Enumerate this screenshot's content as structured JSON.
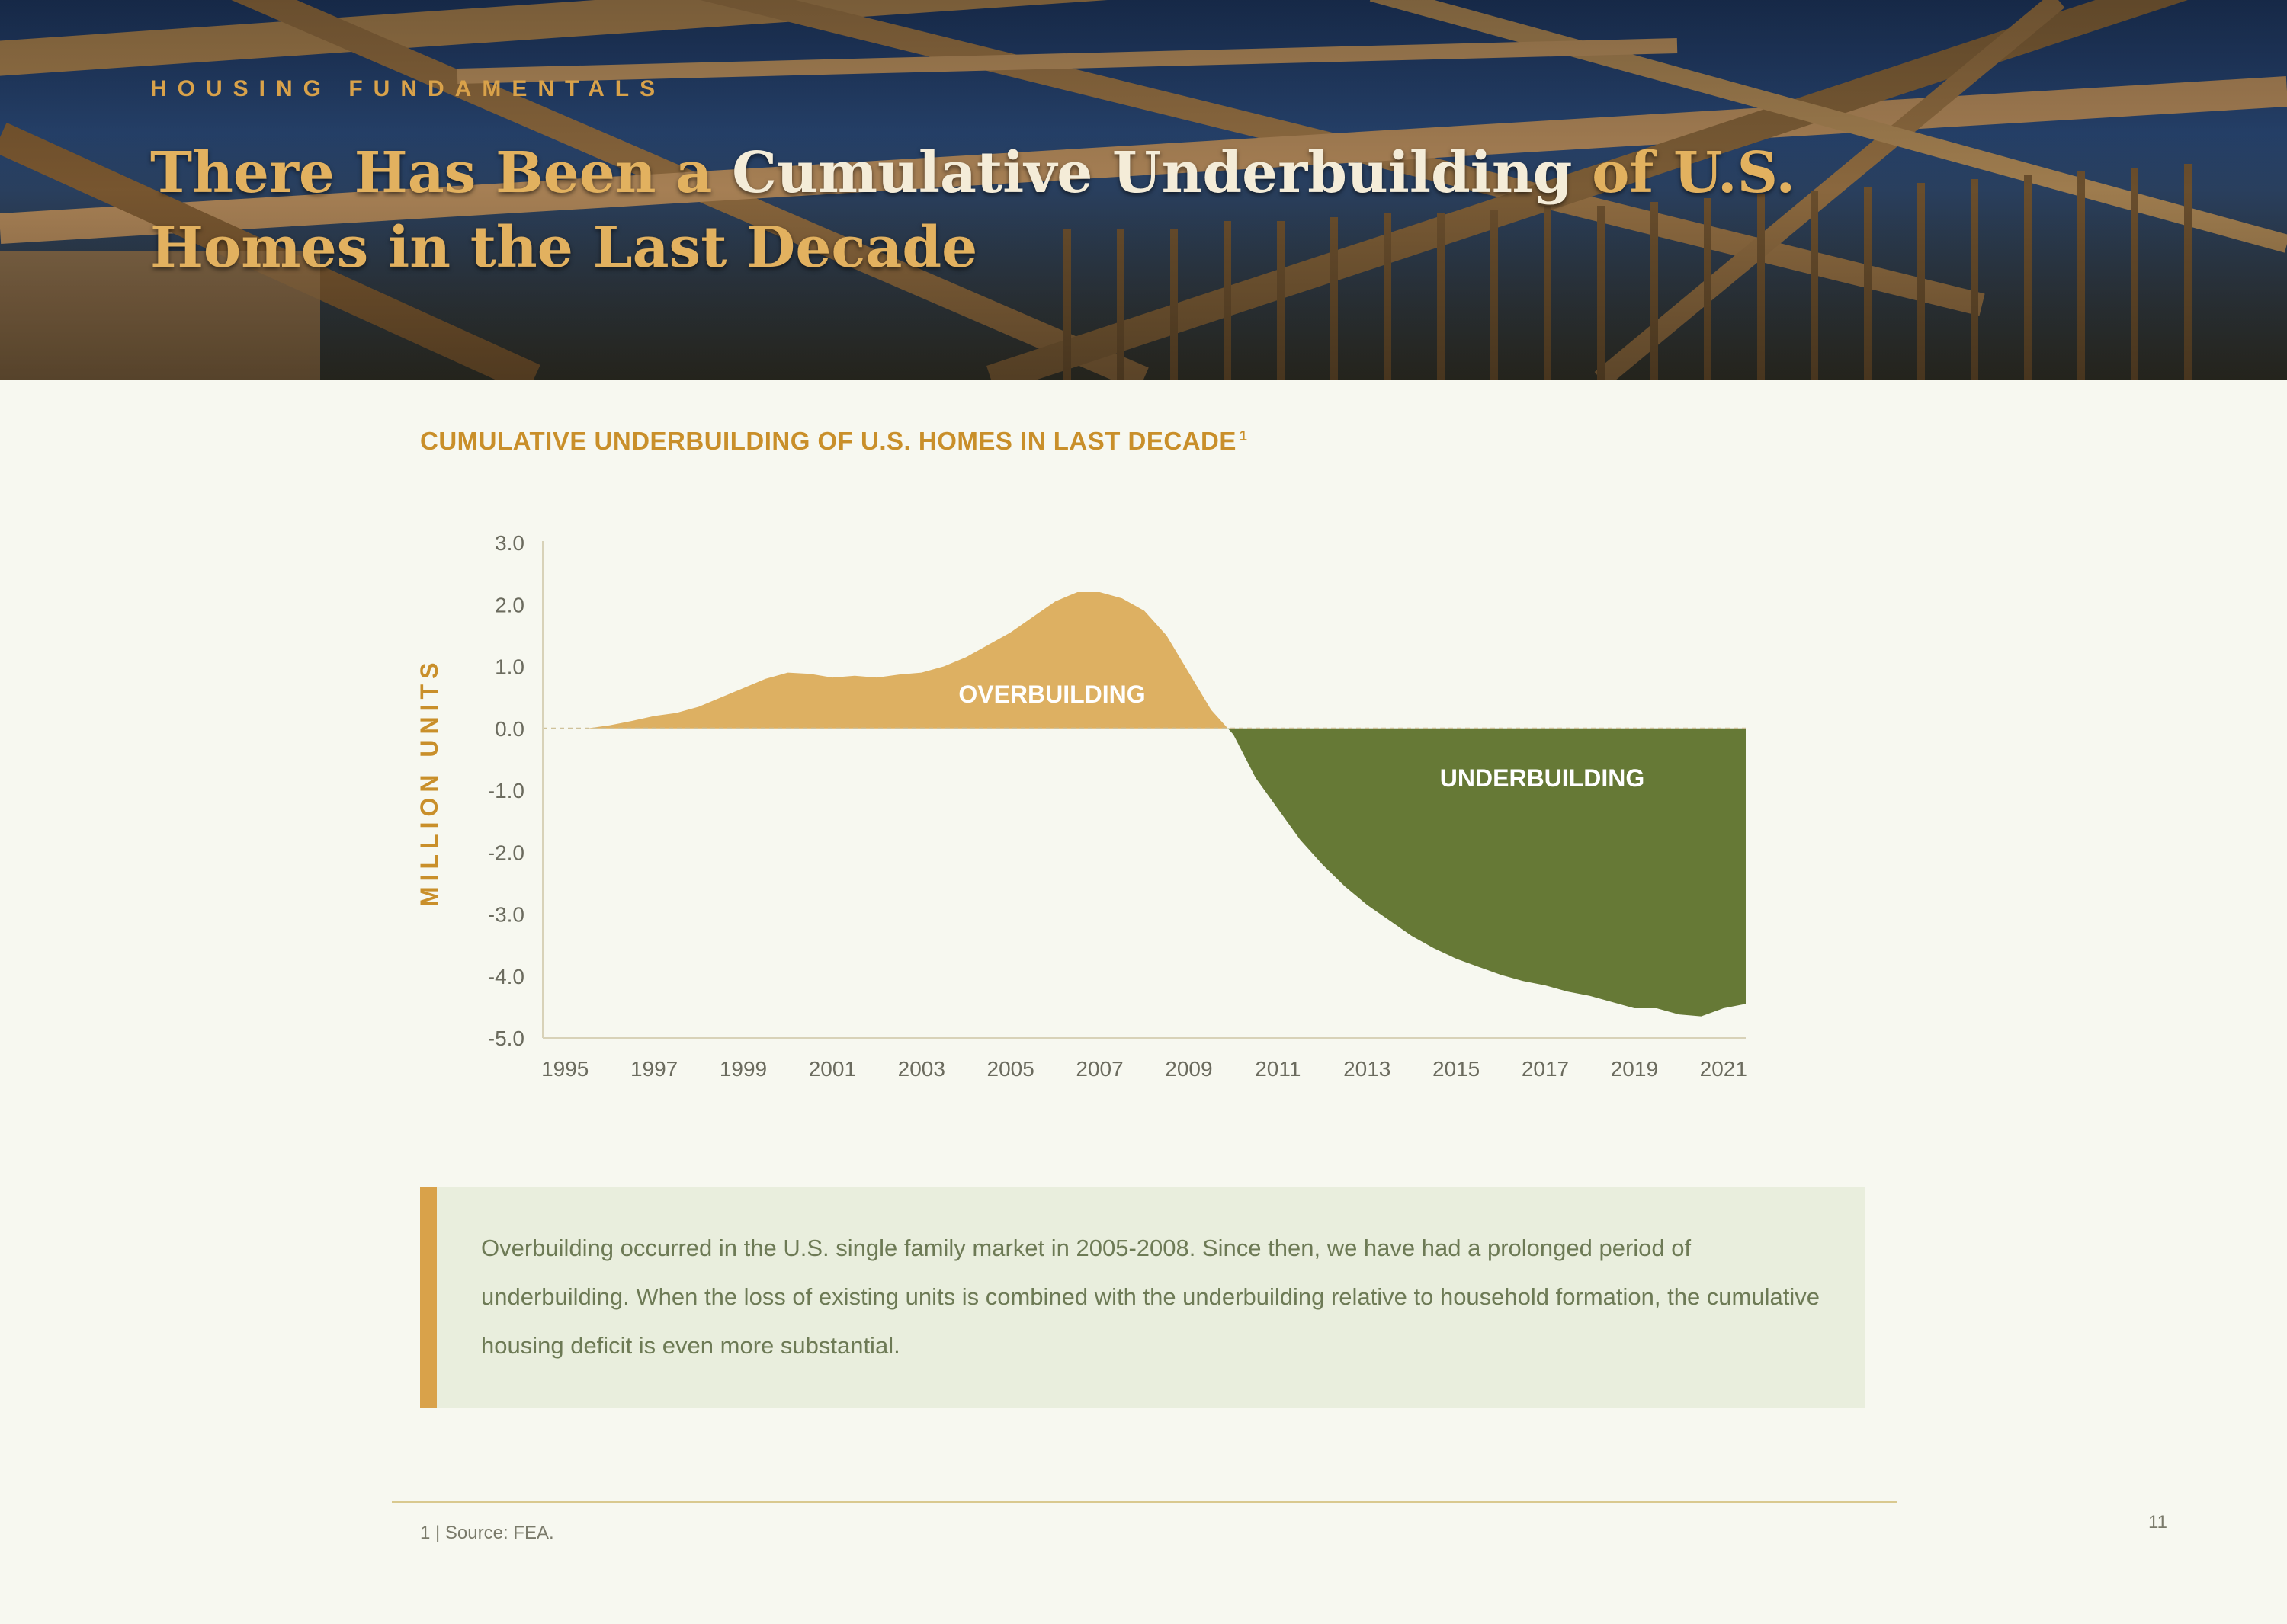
{
  "header": {
    "eyebrow": "HOUSING FUNDAMENTALS",
    "title_part1": "There Has Been a ",
    "title_highlight": "Cumulative Underbuilding",
    "title_part2": " of U.S. Homes in the Last Decade"
  },
  "colors": {
    "accent_gold": "#d9a24a",
    "overbuilding_fill": "#ddb062",
    "underbuilding_fill": "#667936",
    "background": "#f7f8f0"
  },
  "chart_data": {
    "type": "area",
    "title": "CUMULATIVE UNDERBUILDING OF U.S. HOMES IN LAST DECADE",
    "title_footnote_marker": "1",
    "ylabel": "MILLION UNITS",
    "xlabel": "",
    "ylim": [
      -5.0,
      3.0
    ],
    "xlim": [
      1994.5,
      2021.5
    ],
    "y_ticks": [
      "3.0",
      "2.0",
      "1.0",
      "0.0",
      "-1.0",
      "-2.0",
      "-3.0",
      "-4.0",
      "-5.0"
    ],
    "x_ticks": [
      "1995",
      "1997",
      "1999",
      "2001",
      "2003",
      "2005",
      "2007",
      "2009",
      "2011",
      "2013",
      "2015",
      "2017",
      "2019",
      "2021"
    ],
    "grid": false,
    "annotations": [
      "OVERBUILDING",
      "UNDERBUILDING"
    ],
    "x": [
      1995.5,
      1996,
      1996.5,
      1997,
      1997.5,
      1998,
      1998.5,
      1999,
      1999.5,
      2000,
      2000.5,
      2001,
      2001.5,
      2002,
      2002.5,
      2003,
      2003.5,
      2004,
      2004.5,
      2005,
      2005.5,
      2006,
      2006.5,
      2007,
      2007.5,
      2008,
      2008.5,
      2009,
      2009.5,
      2010,
      2010.5,
      2011,
      2011.5,
      2012,
      2012.5,
      2013,
      2013.5,
      2014,
      2014.5,
      2015,
      2015.5,
      2016,
      2016.5,
      2017,
      2017.5,
      2018,
      2018.5,
      2019,
      2019.5,
      2020,
      2020.5,
      2021,
      2021.5
    ],
    "values": [
      0.0,
      0.05,
      0.12,
      0.2,
      0.25,
      0.35,
      0.5,
      0.65,
      0.8,
      0.9,
      0.88,
      0.82,
      0.85,
      0.82,
      0.87,
      0.9,
      1.0,
      1.15,
      1.35,
      1.55,
      1.8,
      2.05,
      2.2,
      2.2,
      2.1,
      1.9,
      1.5,
      0.9,
      0.3,
      -0.1,
      -0.8,
      -1.3,
      -1.8,
      -2.2,
      -2.55,
      -2.85,
      -3.1,
      -3.35,
      -3.55,
      -3.72,
      -3.85,
      -3.98,
      -4.08,
      -4.15,
      -4.25,
      -4.32,
      -4.42,
      -4.52,
      -4.52,
      -4.62,
      -4.65,
      -4.52,
      -4.45
    ]
  },
  "note": {
    "text": "Overbuilding occurred in the U.S. single family market in 2005-2008. Since then, we have had a prolonged period of underbuilding. When the loss of existing units is combined with the underbuilding relative to household formation, the cumulative housing deficit is even more substantial."
  },
  "footer": {
    "footnote": "1 | Source: FEA.",
    "page_number": "11"
  }
}
